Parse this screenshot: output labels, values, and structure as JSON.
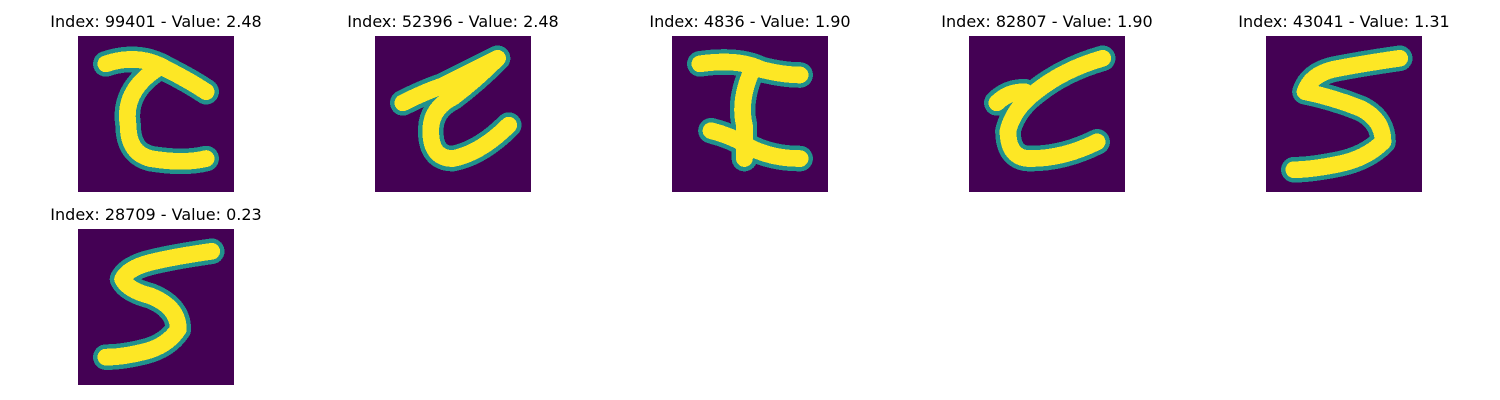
{
  "colors": {
    "background": "#440154",
    "stroke_edge": "#21918c",
    "stroke_core": "#fde725"
  },
  "panels": [
    {
      "title": "Index: 99401 - Value: 2.48",
      "index": 99401,
      "value": 2.48,
      "image": "handwritten-digit"
    },
    {
      "title": "Index: 52396 - Value: 2.48",
      "index": 52396,
      "value": 2.48,
      "image": "handwritten-digit"
    },
    {
      "title": "Index: 4836 - Value: 1.90",
      "index": 4836,
      "value": 1.9,
      "image": "handwritten-digit"
    },
    {
      "title": "Index: 82807 - Value: 1.90",
      "index": 82807,
      "value": 1.9,
      "image": "handwritten-digit"
    },
    {
      "title": "Index: 43041 - Value: 1.31",
      "index": 43041,
      "value": 1.31,
      "image": "handwritten-digit"
    },
    {
      "title": "Index: 28709 - Value: 0.23",
      "index": 28709,
      "value": 0.23,
      "image": "handwritten-digit"
    }
  ]
}
